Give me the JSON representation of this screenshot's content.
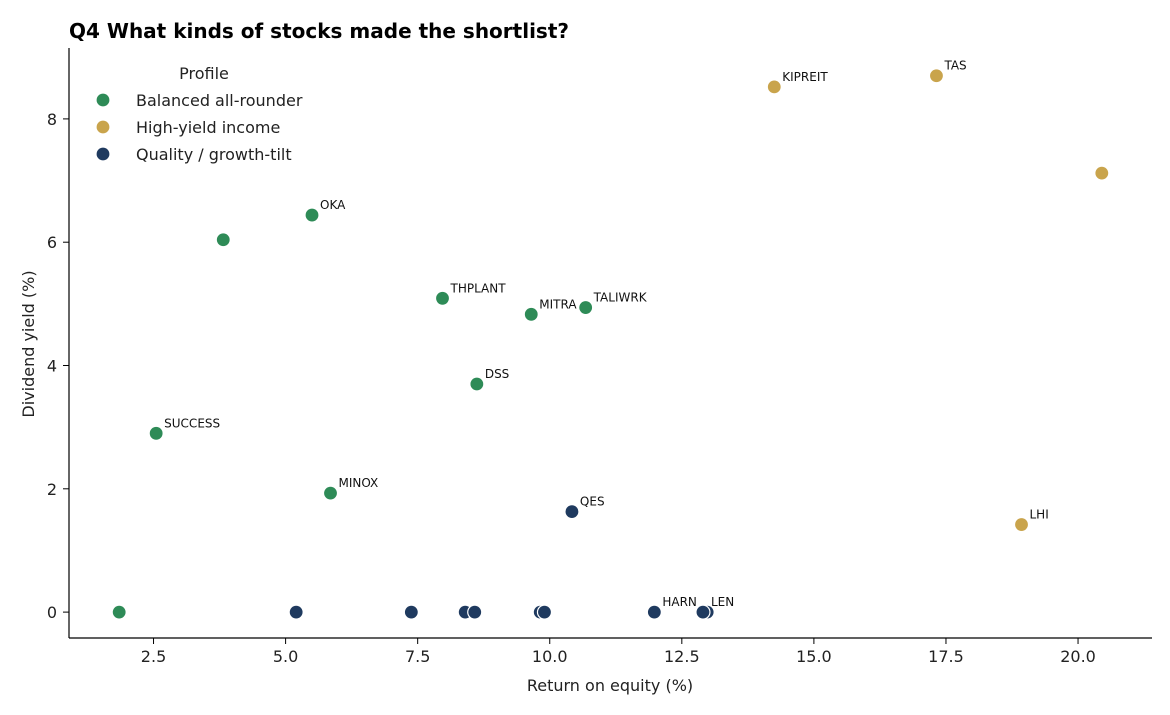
{
  "chart_data": {
    "type": "scatter",
    "title": "Q4  What kinds of stocks made the shortlist?",
    "xlabel": "Return on equity (%)",
    "ylabel": "Dividend yield (%)",
    "xlim": [
      0.9,
      21.4
    ],
    "ylim": [
      -0.42,
      9.15
    ],
    "xticks": [
      2.5,
      5.0,
      7.5,
      10.0,
      12.5,
      15.0,
      17.5,
      20.0
    ],
    "xtick_labels": [
      "2.5",
      "5.0",
      "7.5",
      "10.0",
      "12.5",
      "15.0",
      "17.5",
      "20.0"
    ],
    "yticks": [
      0,
      2,
      4,
      6,
      8
    ],
    "ytick_labels": [
      "0",
      "2",
      "4",
      "6",
      "8"
    ],
    "grid": false,
    "legend": {
      "title": "Profile",
      "placement": "top-left",
      "entries": [
        {
          "label": "Balanced all-rounder",
          "color": "#2e8b57"
        },
        {
          "label": "High-yield income",
          "color": "#c9a44c"
        },
        {
          "label": "Quality / growth-tilt",
          "color": "#1f3a5f"
        }
      ]
    },
    "series": [
      {
        "name": "Balanced all-rounder",
        "color": "#2e8b57",
        "points": [
          {
            "x": 1.85,
            "y": 0.0,
            "label": ""
          },
          {
            "x": 2.55,
            "y": 2.9,
            "label": "SUCCESS"
          },
          {
            "x": 3.82,
            "y": 6.04,
            "label": ""
          },
          {
            "x": 5.5,
            "y": 6.44,
            "label": "OKA"
          },
          {
            "x": 5.85,
            "y": 1.93,
            "label": "MINOX"
          },
          {
            "x": 7.97,
            "y": 5.09,
            "label": "THPLANT"
          },
          {
            "x": 8.62,
            "y": 3.7,
            "label": "DSS"
          },
          {
            "x": 9.65,
            "y": 4.83,
            "label": "MITRA"
          },
          {
            "x": 10.68,
            "y": 4.94,
            "label": "TALIWRK"
          }
        ]
      },
      {
        "name": "High-yield income",
        "color": "#c9a44c",
        "points": [
          {
            "x": 14.25,
            "y": 8.52,
            "label": "KIPREIT"
          },
          {
            "x": 17.32,
            "y": 8.7,
            "label": "TAS"
          },
          {
            "x": 18.93,
            "y": 1.42,
            "label": "LHI"
          },
          {
            "x": 20.45,
            "y": 7.12,
            "label": ""
          }
        ]
      },
      {
        "name": "Quality / growth-tilt",
        "color": "#1f3a5f",
        "points": [
          {
            "x": 5.2,
            "y": 0.0,
            "label": ""
          },
          {
            "x": 7.38,
            "y": 0.0,
            "label": ""
          },
          {
            "x": 8.4,
            "y": 0.0,
            "label": ""
          },
          {
            "x": 8.58,
            "y": 0.0,
            "label": ""
          },
          {
            "x": 9.82,
            "y": 0.0,
            "label": ""
          },
          {
            "x": 9.9,
            "y": 0.0,
            "label": ""
          },
          {
            "x": 10.42,
            "y": 1.63,
            "label": "QES"
          },
          {
            "x": 11.98,
            "y": 0.0,
            "label": "HARN"
          },
          {
            "x": 12.98,
            "y": 0.0,
            "label": ""
          },
          {
            "x": 12.9,
            "y": 0.0,
            "label": "LEN"
          }
        ]
      }
    ]
  }
}
